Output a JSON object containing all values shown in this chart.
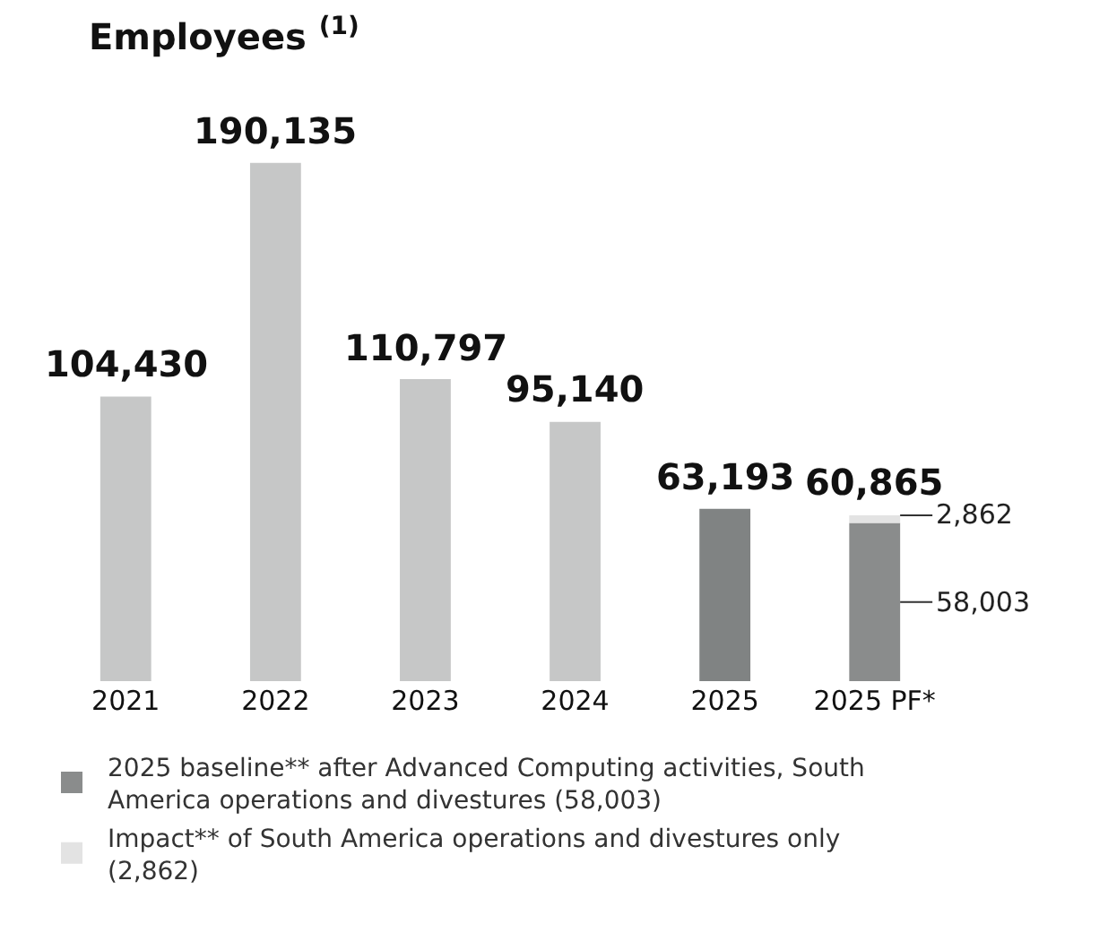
{
  "chart_data": {
    "type": "bar",
    "title": "Employees $^{(1)}$",
    "categories": [
      "2021",
      "2022",
      "2023",
      "2024",
      "2025",
      "2025 PF*"
    ],
    "stacked": true,
    "series": [
      {
        "colors": [
          "#c6c7c7",
          "#c6c7c7",
          "#c6c7c7",
          "#c6c7c7",
          "#808383",
          null
        ],
        "values": [
          104430,
          190135,
          110797,
          95140,
          63193,
          null
        ]
      },
      {
        "name": "2025 baseline** after Advanced Computing activities, South America operations and divestures (58,003)",
        "color": "#8a8c8c",
        "values": [
          null,
          null,
          null,
          null,
          null,
          58003
        ],
        "value_labels": [
          null,
          null,
          null,
          null,
          null,
          "58,003"
        ]
      },
      {
        "name": "Impact** of South America operations and divestures only (2,862)",
        "color": "#e3e3e3",
        "values": [
          null,
          null,
          null,
          null,
          null,
          2862
        ],
        "value_labels": [
          null,
          null,
          null,
          null,
          null,
          "2,862"
        ]
      }
    ],
    "totals": [
      "104,430",
      "190,135",
      "110,797",
      "95,140",
      "63,193",
      "60,865"
    ],
    "legend": "bottom",
    "grid": false
  }
}
